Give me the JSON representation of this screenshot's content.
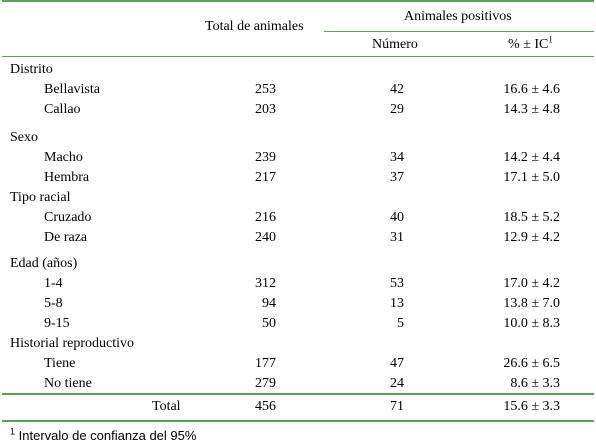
{
  "headers": {
    "total": "Total de animales",
    "positivos": "Animales positivos",
    "numero": "Número",
    "pct": "% ± IC",
    "pct_sup": "1"
  },
  "sections": [
    {
      "title": "Distrito",
      "rows": [
        {
          "label": "Bellavista",
          "total": "253",
          "numero": "42",
          "pct": "16.6 ± 4.6"
        },
        {
          "label": "Callao",
          "total": "203",
          "numero": "29",
          "pct": "14.3 ± 4.8"
        }
      ]
    },
    {
      "title": "Sexo",
      "rows": [
        {
          "label": "Macho",
          "total": "239",
          "numero": "34",
          "pct": "14.2 ± 4.4"
        },
        {
          "label": "Hembra",
          "total": "217",
          "numero": "37",
          "pct": "17.1 ± 5.0"
        }
      ]
    },
    {
      "title": "Tipo racial",
      "rows": [
        {
          "label": "Cruzado",
          "total": "216",
          "numero": "40",
          "pct": "18.5 ± 5.2"
        },
        {
          "label": "De raza",
          "total": "240",
          "numero": "31",
          "pct": "12.9 ± 4.2"
        }
      ]
    },
    {
      "title": "Edad (años)",
      "rows": [
        {
          "label": "1-4",
          "total": "312",
          "numero": "53",
          "pct": "17.0 ± 4.2"
        },
        {
          "label": "5-8",
          "total": "94",
          "numero": "13",
          "pct": "13.8 ± 7.0"
        },
        {
          "label": "9-15",
          "total": "50",
          "numero": "5",
          "pct": "10.0 ± 8.3"
        }
      ]
    },
    {
      "title": "Historial reproductivo",
      "rows": [
        {
          "label": "Tiene",
          "total": "177",
          "numero": "47",
          "pct": "26.6 ± 6.5"
        },
        {
          "label": "No tiene",
          "total": "279",
          "numero": "24",
          "pct": "8.6 ± 3.3"
        }
      ]
    }
  ],
  "total_row": {
    "label": "Total",
    "total": "456",
    "numero": "71",
    "pct": "15.6 ± 3.3"
  },
  "footnote": {
    "sup": "1",
    "text": "Intervalo de confianza del 95%"
  },
  "colors": {
    "rule": "#5aa05a"
  }
}
